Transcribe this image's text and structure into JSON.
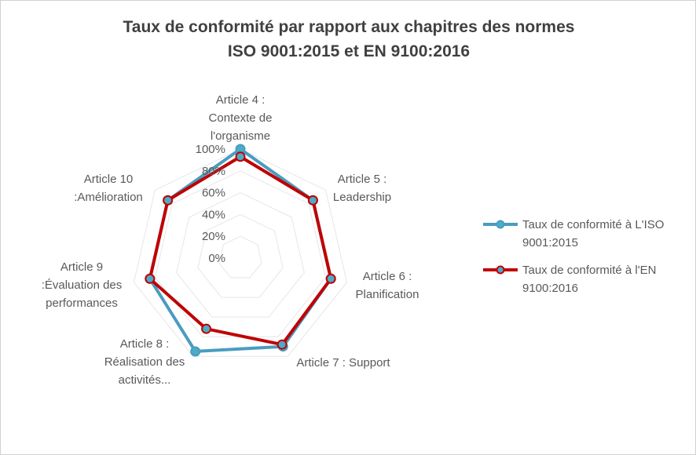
{
  "chart_data": {
    "type": "radar",
    "title": "Taux de conformité par rapport aux chapitres des normes",
    "subtitle": "ISO 9001:2015 et EN 9100:2016",
    "categories": [
      "Article 4 : Contexte de l'organisme",
      "Article 5 : Leadership",
      "Article 6 : Planification",
      "Article 7 : Support",
      "Article 8 : Réalisation des activités...",
      "Article 9 :Évaluation des performances",
      "Article 10 :Amélioration"
    ],
    "category_label_lines": [
      [
        "Article 4 :",
        "Contexte de",
        "l'organisme"
      ],
      [
        "Article 5 :",
        "Leadership"
      ],
      [
        "Article 6 :",
        "Planification"
      ],
      [
        "Article 7 : Support"
      ],
      [
        "Article 8 :",
        "Réalisation des",
        "activités..."
      ],
      [
        "Article 9",
        ":Évaluation des",
        "performances"
      ],
      [
        "Article 10",
        ":Amélioration"
      ]
    ],
    "radial_ticks": [
      "0%",
      "20%",
      "40%",
      "60%",
      "80%",
      "100%"
    ],
    "rlim": [
      0,
      100
    ],
    "grid": true,
    "legend_position": "right",
    "series": [
      {
        "name": "Taux de conformité à L'ISO 9001:2015",
        "legend_lines": [
          "Taux de conformité à L'ISO",
          "9001:2015"
        ],
        "color": "#4a9cc0",
        "marker_fill": "#4bacc6",
        "values": [
          100,
          85,
          85,
          90,
          95,
          85,
          85
        ]
      },
      {
        "name": "Taux de conformité à l'EN 9100:2016",
        "legend_lines": [
          "Taux de conformité à l'EN",
          "9100:2016"
        ],
        "color": "#c00000",
        "marker_fill": "#4bacc6",
        "values": [
          93,
          85,
          85,
          88,
          72,
          85,
          85
        ]
      }
    ]
  }
}
